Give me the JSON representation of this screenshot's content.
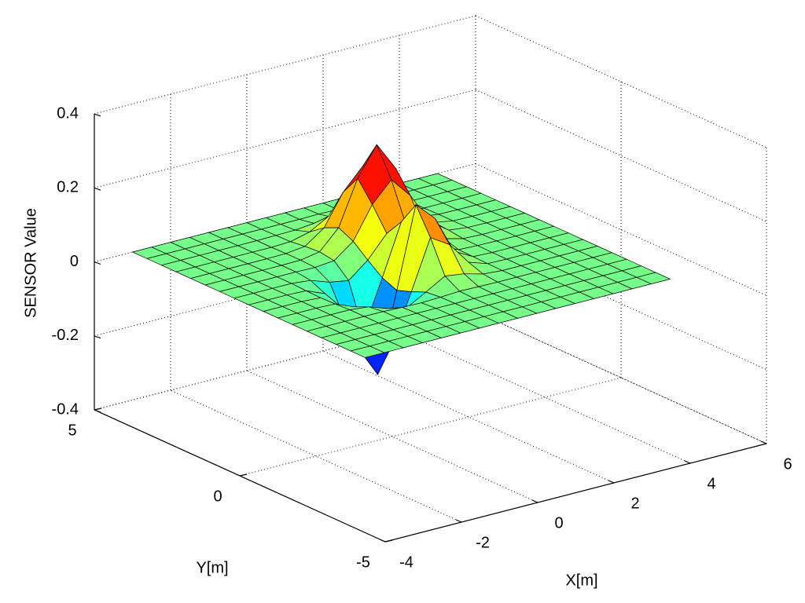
{
  "chart_data": {
    "type": "surface",
    "xlabel": "X[m]",
    "ylabel": "Y[m]",
    "zlabel": "SENSOR Value",
    "x": [
      -3,
      -2.5,
      -2,
      -1.5,
      -1,
      -0.5,
      0,
      0.5,
      1,
      1.5,
      2,
      2.5,
      3,
      3.5,
      4,
      4.5,
      5
    ],
    "y": [
      -3,
      -2.5,
      -2,
      -1.5,
      -1,
      -0.5,
      0,
      0.5,
      1,
      1.5,
      2,
      2.5,
      3,
      3.5,
      4,
      4.5,
      5
    ],
    "z": [
      [
        0,
        0,
        0,
        0,
        0,
        0,
        0,
        0,
        0,
        0,
        0,
        0,
        0,
        0,
        0,
        0,
        0
      ],
      [
        0,
        0,
        0,
        0,
        0,
        0,
        0,
        0,
        0,
        0,
        0,
        0,
        0,
        0,
        0,
        0,
        0
      ],
      [
        0,
        0,
        0,
        0,
        0,
        0,
        0,
        0,
        0,
        0,
        0,
        0,
        0,
        0,
        0,
        0,
        0
      ],
      [
        0,
        0,
        0,
        0,
        0,
        0,
        0,
        0,
        0,
        0,
        0,
        0,
        0,
        0,
        0,
        0,
        0
      ],
      [
        0,
        0,
        0,
        0,
        0,
        -0.002,
        -0.003,
        -0.001,
        0.002,
        0.001,
        0,
        0,
        0,
        0,
        0,
        0,
        0
      ],
      [
        0,
        0,
        0,
        0,
        -0.005,
        -0.023,
        -0.034,
        -0.005,
        0.025,
        0.018,
        0.004,
        0,
        0,
        0,
        0,
        0,
        0
      ],
      [
        0,
        0,
        0,
        -0.002,
        -0.023,
        -0.102,
        -0.152,
        -0.022,
        0.111,
        0.079,
        0.018,
        0.001,
        0,
        0,
        0,
        0,
        0
      ],
      [
        0,
        0,
        0,
        -0.003,
        -0.038,
        -0.168,
        -0.25,
        -0.036,
        0.182,
        0.132,
        0.03,
        0.002,
        0,
        0,
        0,
        0,
        0
      ],
      [
        0,
        0,
        0,
        -0.002,
        -0.023,
        -0.102,
        -0.151,
        -0.02,
        0.118,
        0.089,
        0.025,
        0.003,
        0.001,
        0,
        0,
        0,
        0
      ],
      [
        0,
        0,
        0,
        0,
        -0.005,
        -0.023,
        -0.032,
        0.01,
        0.069,
        0.08,
        0.048,
        0.015,
        0.002,
        0,
        0,
        0,
        0
      ],
      [
        0,
        0,
        0,
        0,
        0,
        -0.001,
        0.004,
        0.043,
        0.129,
        0.183,
        0.127,
        0.044,
        0.007,
        0.001,
        0,
        0,
        0
      ],
      [
        0,
        0,
        0,
        0,
        0,
        0.001,
        0.01,
        0.062,
        0.182,
        0.26,
        0.182,
        0.062,
        0.01,
        0.001,
        0,
        0,
        0
      ],
      [
        0,
        0,
        0,
        0,
        0,
        0.001,
        0.007,
        0.044,
        0.127,
        0.182,
        0.127,
        0.044,
        0.007,
        0.001,
        0,
        0,
        0
      ],
      [
        0,
        0,
        0,
        0,
        0,
        0,
        0.002,
        0.015,
        0.044,
        0.062,
        0.044,
        0.015,
        0.002,
        0,
        0,
        0,
        0
      ],
      [
        0,
        0,
        0,
        0,
        0,
        0,
        0.001,
        0.002,
        0.007,
        0.01,
        0.007,
        0.002,
        0.001,
        0,
        0,
        0,
        0
      ],
      [
        0,
        0,
        0,
        0,
        0,
        0,
        0,
        0,
        0,
        0.001,
        0,
        0,
        0,
        0,
        0,
        0,
        0
      ],
      [
        0,
        0,
        0,
        0,
        0,
        0,
        0,
        0,
        0,
        0,
        0,
        0,
        0,
        0,
        0,
        0,
        0
      ]
    ],
    "xlim": [
      -4,
      6
    ],
    "ylim": [
      -5,
      5
    ],
    "zlim": [
      -0.4,
      0.4
    ],
    "xticks": [
      -4,
      -2,
      0,
      2,
      4,
      6
    ],
    "yticks": [
      -5,
      0,
      5
    ],
    "zticks": [
      -0.4,
      -0.2,
      0,
      0.2,
      0.4
    ],
    "grid": true,
    "colormap": "jet"
  }
}
